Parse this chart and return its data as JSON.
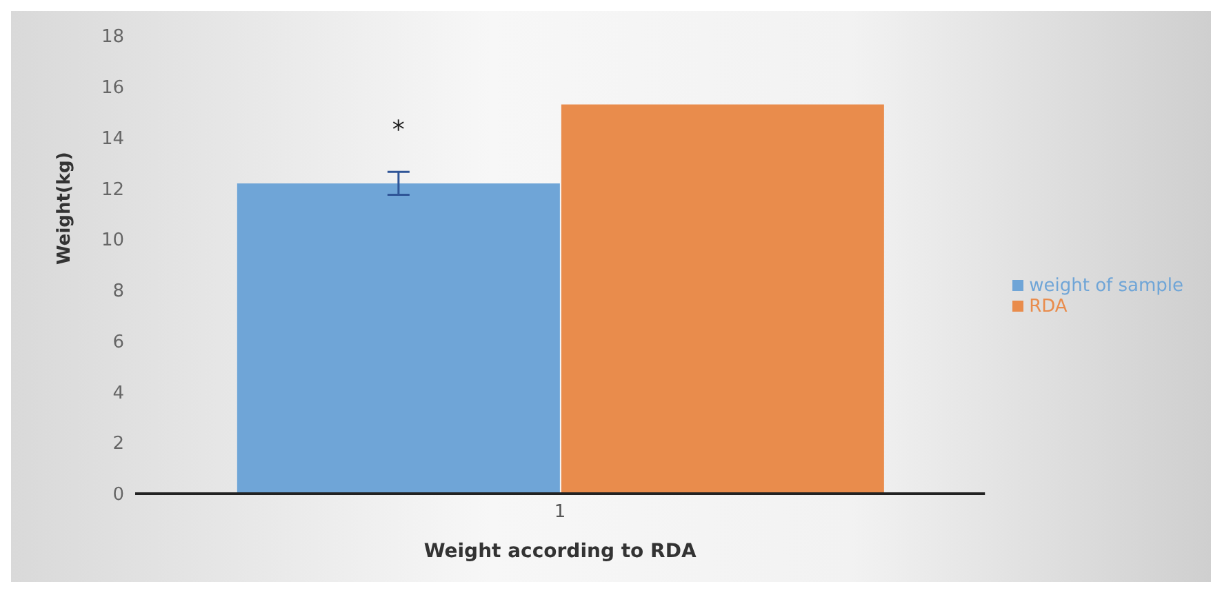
{
  "chart_data": {
    "type": "bar",
    "xlabel": "Weight according to RDA",
    "ylabel": "Weight(kg)",
    "categories": [
      "1"
    ],
    "series": [
      {
        "name": "weight of sample",
        "color": "#6fa5d7",
        "values": [
          12.2
        ],
        "errors": [
          0.45
        ]
      },
      {
        "name": "RDA",
        "color": "#e98c4c",
        "values": [
          15.3
        ]
      }
    ],
    "ylim": [
      0,
      18
    ],
    "yticks": [
      0,
      2,
      4,
      6,
      8,
      10,
      12,
      14,
      16,
      18
    ],
    "legend": "right",
    "annotations": [
      "*"
    ]
  }
}
